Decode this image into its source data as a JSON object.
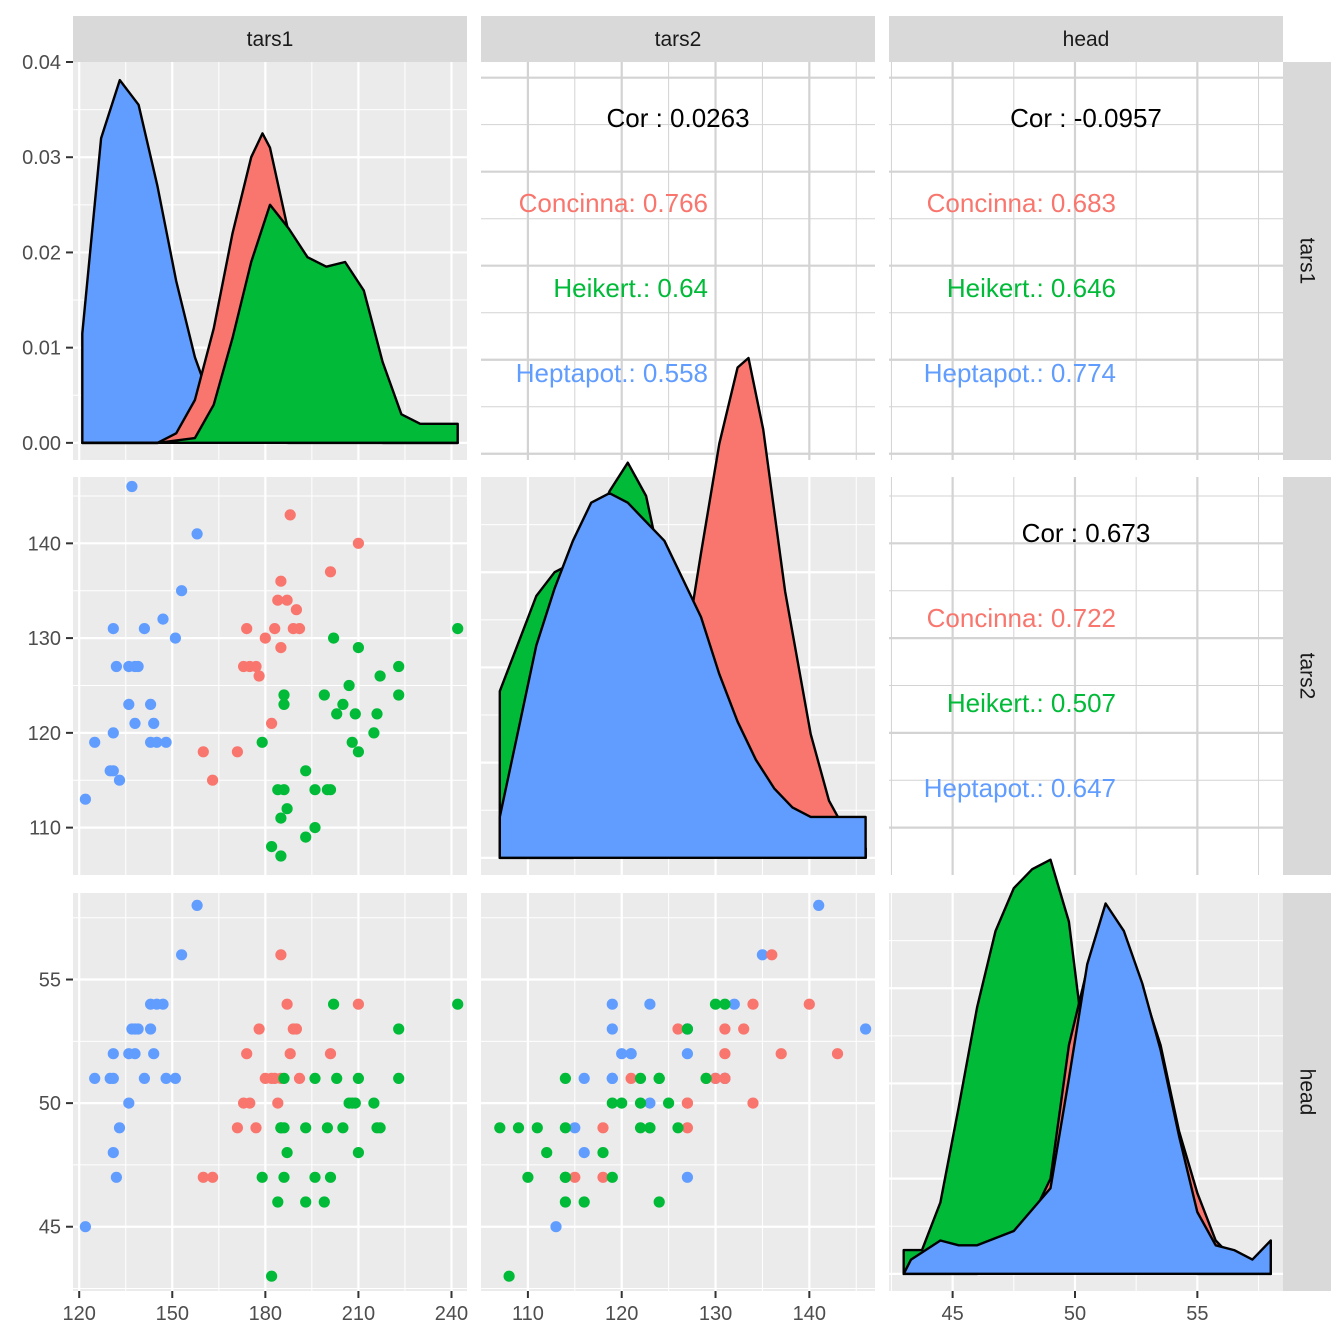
{
  "colors": {
    "panel_bg": "#ebebeb",
    "grid": "#ffffff",
    "strip_bg": "#d9d9d9",
    "Concinna": "#F8766D",
    "Heikert.": "#00BA38",
    "Heptapot.": "#619CFF",
    "text": "#1a1a1a",
    "axis_text": "#4d4d4d"
  },
  "chart_data": {
    "type": "pairs",
    "variables": [
      "tars1",
      "tars2",
      "head"
    ],
    "groups": [
      "Concinna",
      "Heikert.",
      "Heptapot."
    ],
    "column_strips": [
      "tars1",
      "tars2",
      "head"
    ],
    "row_strips": [
      "tars1",
      "tars2",
      "head"
    ],
    "axes": {
      "tars1": {
        "ticks": [
          120,
          150,
          180,
          210,
          240
        ],
        "x_range": [
          118,
          245
        ]
      },
      "tars2": {
        "ticks": [
          110,
          120,
          130,
          140
        ],
        "x_range": [
          105,
          147
        ]
      },
      "head": {
        "ticks": [
          45,
          50,
          55
        ],
        "x_range": [
          42.4,
          58.5
        ]
      }
    },
    "density_y_axis": {
      "ticks": [
        "0.00",
        "0.01",
        "0.02",
        "0.03",
        "0.04"
      ],
      "tick_values": [
        0,
        0.01,
        0.02,
        0.03,
        0.04
      ],
      "range": [
        -0.0018,
        0.04
      ]
    },
    "density_x_ranges": {
      "tars1": [
        121,
        242
      ],
      "tars2": [
        107,
        146
      ],
      "head": [
        43,
        58
      ]
    },
    "densities": {
      "tars1": {
        "Heptapot.": [
          [
            0,
            0.0115
          ],
          [
            0.05,
            0.032
          ],
          [
            0.1,
            0.0381
          ],
          [
            0.15,
            0.0355
          ],
          [
            0.2,
            0.027
          ],
          [
            0.25,
            0.017
          ],
          [
            0.3,
            0.009
          ],
          [
            0.35,
            0.0035
          ],
          [
            0.4,
            0.001
          ],
          [
            0.45,
            0.0003
          ],
          [
            0.5,
            0.0001
          ],
          [
            0.55,
            0
          ],
          [
            0.6,
            0
          ],
          [
            0.7,
            0
          ],
          [
            0.8,
            0
          ],
          [
            0.9,
            0
          ],
          [
            1,
            0
          ]
        ],
        "Concinna": [
          [
            0,
            0
          ],
          [
            0.1,
            0
          ],
          [
            0.2,
            0
          ],
          [
            0.25,
            0.001
          ],
          [
            0.3,
            0.0045
          ],
          [
            0.35,
            0.012
          ],
          [
            0.4,
            0.022
          ],
          [
            0.45,
            0.03
          ],
          [
            0.48,
            0.0325
          ],
          [
            0.5,
            0.031
          ],
          [
            0.55,
            0.022
          ],
          [
            0.6,
            0.012
          ],
          [
            0.65,
            0.005
          ],
          [
            0.7,
            0.0015
          ],
          [
            0.8,
            0
          ],
          [
            0.9,
            0
          ],
          [
            1,
            0
          ]
        ],
        "Heikert.": [
          [
            0,
            0
          ],
          [
            0.2,
            0
          ],
          [
            0.3,
            0.0005
          ],
          [
            0.35,
            0.004
          ],
          [
            0.4,
            0.011
          ],
          [
            0.45,
            0.019
          ],
          [
            0.5,
            0.025
          ],
          [
            0.55,
            0.0225
          ],
          [
            0.6,
            0.0195
          ],
          [
            0.65,
            0.0185
          ],
          [
            0.7,
            0.019
          ],
          [
            0.75,
            0.016
          ],
          [
            0.8,
            0.0085
          ],
          [
            0.85,
            0.003
          ],
          [
            0.9,
            0.002
          ],
          [
            1,
            0.002
          ]
        ]
      },
      "tars2": {
        "Heikert.": [
          [
            0,
            0.0175
          ],
          [
            0.05,
            0.0225
          ],
          [
            0.1,
            0.0275
          ],
          [
            0.15,
            0.03
          ],
          [
            0.2,
            0.031
          ],
          [
            0.25,
            0.034
          ],
          [
            0.3,
            0.0385
          ],
          [
            0.35,
            0.0415
          ],
          [
            0.4,
            0.038
          ],
          [
            0.45,
            0.029
          ],
          [
            0.5,
            0.021
          ],
          [
            0.55,
            0.015
          ],
          [
            0.6,
            0.011
          ],
          [
            0.7,
            0.006
          ],
          [
            0.8,
            0.003
          ],
          [
            0.9,
            0.0015
          ],
          [
            1,
            0.001
          ]
        ],
        "Concinna": [
          [
            0,
            0
          ],
          [
            0.2,
            0
          ],
          [
            0.3,
            0.0005
          ],
          [
            0.4,
            0.005
          ],
          [
            0.45,
            0.011
          ],
          [
            0.5,
            0.02
          ],
          [
            0.55,
            0.032
          ],
          [
            0.6,
            0.0435
          ],
          [
            0.65,
            0.0515
          ],
          [
            0.68,
            0.0525
          ],
          [
            0.72,
            0.045
          ],
          [
            0.78,
            0.028
          ],
          [
            0.85,
            0.013
          ],
          [
            0.9,
            0.006
          ],
          [
            0.95,
            0.0025
          ],
          [
            1,
            0.001
          ]
        ],
        "Heptapot.": [
          [
            0,
            0.0043
          ],
          [
            0.05,
            0.0133
          ],
          [
            0.1,
            0.0223
          ],
          [
            0.15,
            0.0283
          ],
          [
            0.2,
            0.0333
          ],
          [
            0.25,
            0.0373
          ],
          [
            0.3,
            0.0383
          ],
          [
            0.35,
            0.0373
          ],
          [
            0.4,
            0.0353
          ],
          [
            0.45,
            0.0333
          ],
          [
            0.5,
            0.0293
          ],
          [
            0.55,
            0.0253
          ],
          [
            0.6,
            0.0193
          ],
          [
            0.65,
            0.0143
          ],
          [
            0.7,
            0.0103
          ],
          [
            0.75,
            0.0073
          ],
          [
            0.8,
            0.0053
          ],
          [
            0.85,
            0.0043
          ],
          [
            0.9,
            0.0043
          ],
          [
            0.95,
            0.0043
          ],
          [
            1,
            0.0043
          ]
        ]
      },
      "head": {
        "Heikert.": [
          [
            0,
            0.0025
          ],
          [
            0.05,
            0.0025
          ],
          [
            0.1,
            0.0075
          ],
          [
            0.15,
            0.0175
          ],
          [
            0.2,
            0.028
          ],
          [
            0.25,
            0.036
          ],
          [
            0.3,
            0.0405
          ],
          [
            0.35,
            0.0425
          ],
          [
            0.4,
            0.0435
          ],
          [
            0.45,
            0.037
          ],
          [
            0.5,
            0.0215
          ],
          [
            0.55,
            0.01
          ],
          [
            0.6,
            0.004
          ],
          [
            0.7,
            0.0005
          ],
          [
            0.8,
            0
          ],
          [
            1,
            0
          ]
        ],
        "Concinna": [
          [
            0,
            0
          ],
          [
            0.2,
            0
          ],
          [
            0.3,
            0.002
          ],
          [
            0.4,
            0.01
          ],
          [
            0.45,
            0.024
          ],
          [
            0.5,
            0.032
          ],
          [
            0.55,
            0.0365
          ],
          [
            0.6,
            0.0345
          ],
          [
            0.65,
            0.03
          ],
          [
            0.7,
            0.024
          ],
          [
            0.75,
            0.015
          ],
          [
            0.8,
            0.0085
          ],
          [
            0.85,
            0.0035
          ],
          [
            0.9,
            0.0015
          ],
          [
            1,
            0
          ]
        ],
        "Heptapot.": [
          [
            0,
            0
          ],
          [
            0.02,
            0.0015
          ],
          [
            0.1,
            0.0035
          ],
          [
            0.15,
            0.003
          ],
          [
            0.2,
            0.003
          ],
          [
            0.3,
            0.0045
          ],
          [
            0.4,
            0.009
          ],
          [
            0.45,
            0.0205
          ],
          [
            0.5,
            0.0325
          ],
          [
            0.55,
            0.0389
          ],
          [
            0.6,
            0.036
          ],
          [
            0.65,
            0.0305
          ],
          [
            0.7,
            0.0235
          ],
          [
            0.75,
            0.0145
          ],
          [
            0.8,
            0.0065
          ],
          [
            0.85,
            0.003
          ],
          [
            0.9,
            0.0025
          ],
          [
            0.95,
            0.0015
          ],
          [
            1,
            0.0035
          ]
        ]
      }
    },
    "correlations": [
      {
        "pair": [
          "tars2",
          "tars1"
        ],
        "overall": "Cor : 0.0263",
        "groups": [
          "Concinna: 0.766",
          "Heikert.: 0.64",
          "Heptapot.: 0.558"
        ]
      },
      {
        "pair": [
          "head",
          "tars1"
        ],
        "overall": "Cor : -0.0957",
        "groups": [
          "Concinna: 0.683",
          "Heikert.: 0.646",
          "Heptapot.: 0.774"
        ]
      },
      {
        "pair": [
          "head",
          "tars2"
        ],
        "overall": "Cor : 0.673",
        "groups": [
          "Concinna: 0.722",
          "Heikert.: 0.507",
          "Heptapot.: 0.647"
        ]
      }
    ],
    "points": [
      {
        "g": "Heptapot.",
        "tars1": 122,
        "tars2": 113,
        "head": 45
      },
      {
        "g": "Heptapot.",
        "tars1": 125,
        "tars2": 119,
        "head": 51
      },
      {
        "g": "Heptapot.",
        "tars1": 130,
        "tars2": 116,
        "head": 51
      },
      {
        "g": "Heptapot.",
        "tars1": 131,
        "tars2": 116,
        "head": 48
      },
      {
        "g": "Heptapot.",
        "tars1": 131,
        "tars2": 120,
        "head": 52
      },
      {
        "g": "Heptapot.",
        "tars1": 131,
        "tars2": 131,
        "head": 51
      },
      {
        "g": "Heptapot.",
        "tars1": 132,
        "tars2": 127,
        "head": 47
      },
      {
        "g": "Heptapot.",
        "tars1": 133,
        "tars2": 115,
        "head": 49
      },
      {
        "g": "Heptapot.",
        "tars1": 136,
        "tars2": 123,
        "head": 50
      },
      {
        "g": "Heptapot.",
        "tars1": 136,
        "tars2": 127,
        "head": 52
      },
      {
        "g": "Heptapot.",
        "tars1": 137,
        "tars2": 146,
        "head": 53
      },
      {
        "g": "Heptapot.",
        "tars1": 138,
        "tars2": 127,
        "head": 53
      },
      {
        "g": "Heptapot.",
        "tars1": 138,
        "tars2": 121,
        "head": 52
      },
      {
        "g": "Heptapot.",
        "tars1": 139,
        "tars2": 127,
        "head": 53
      },
      {
        "g": "Heptapot.",
        "tars1": 141,
        "tars2": 131,
        "head": 51
      },
      {
        "g": "Heptapot.",
        "tars1": 143,
        "tars2": 123,
        "head": 54
      },
      {
        "g": "Heptapot.",
        "tars1": 143,
        "tars2": 119,
        "head": 53
      },
      {
        "g": "Heptapot.",
        "tars1": 144,
        "tars2": 121,
        "head": 52
      },
      {
        "g": "Heptapot.",
        "tars1": 145,
        "tars2": 119,
        "head": 54
      },
      {
        "g": "Heptapot.",
        "tars1": 147,
        "tars2": 132,
        "head": 54
      },
      {
        "g": "Heptapot.",
        "tars1": 148,
        "tars2": 119,
        "head": 51
      },
      {
        "g": "Heptapot.",
        "tars1": 151,
        "tars2": 130,
        "head": 51
      },
      {
        "g": "Heptapot.",
        "tars1": 153,
        "tars2": 135,
        "head": 56
      },
      {
        "g": "Heptapot.",
        "tars1": 158,
        "tars2": 141,
        "head": 58
      },
      {
        "g": "Concinna",
        "tars1": 160,
        "tars2": 118,
        "head": 47
      },
      {
        "g": "Concinna",
        "tars1": 163,
        "tars2": 115,
        "head": 47
      },
      {
        "g": "Concinna",
        "tars1": 171,
        "tars2": 118,
        "head": 49
      },
      {
        "g": "Concinna",
        "tars1": 173,
        "tars2": 127,
        "head": 50
      },
      {
        "g": "Concinna",
        "tars1": 174,
        "tars2": 131,
        "head": 52
      },
      {
        "g": "Concinna",
        "tars1": 175,
        "tars2": 127,
        "head": 50
      },
      {
        "g": "Concinna",
        "tars1": 177,
        "tars2": 127,
        "head": 49
      },
      {
        "g": "Concinna",
        "tars1": 178,
        "tars2": 126,
        "head": 53
      },
      {
        "g": "Concinna",
        "tars1": 180,
        "tars2": 130,
        "head": 51
      },
      {
        "g": "Concinna",
        "tars1": 182,
        "tars2": 121,
        "head": 51
      },
      {
        "g": "Concinna",
        "tars1": 183,
        "tars2": 131,
        "head": 51
      },
      {
        "g": "Concinna",
        "tars1": 184,
        "tars2": 134,
        "head": 50
      },
      {
        "g": "Concinna",
        "tars1": 185,
        "tars2": 129,
        "head": 51
      },
      {
        "g": "Concinna",
        "tars1": 185,
        "tars2": 136,
        "head": 56
      },
      {
        "g": "Concinna",
        "tars1": 187,
        "tars2": 134,
        "head": 54
      },
      {
        "g": "Concinna",
        "tars1": 188,
        "tars2": 143,
        "head": 52
      },
      {
        "g": "Concinna",
        "tars1": 189,
        "tars2": 131,
        "head": 53
      },
      {
        "g": "Concinna",
        "tars1": 190,
        "tars2": 133,
        "head": 53
      },
      {
        "g": "Concinna",
        "tars1": 191,
        "tars2": 131,
        "head": 51
      },
      {
        "g": "Concinna",
        "tars1": 201,
        "tars2": 137,
        "head": 52
      },
      {
        "g": "Concinna",
        "tars1": 210,
        "tars2": 140,
        "head": 54
      },
      {
        "g": "Heikert.",
        "tars1": 179,
        "tars2": 119,
        "head": 47
      },
      {
        "g": "Heikert.",
        "tars1": 182,
        "tars2": 108,
        "head": 43
      },
      {
        "g": "Heikert.",
        "tars1": 184,
        "tars2": 114,
        "head": 46
      },
      {
        "g": "Heikert.",
        "tars1": 185,
        "tars2": 107,
        "head": 49
      },
      {
        "g": "Heikert.",
        "tars1": 185,
        "tars2": 111,
        "head": 49
      },
      {
        "g": "Heikert.",
        "tars1": 186,
        "tars2": 114,
        "head": 47
      },
      {
        "g": "Heikert.",
        "tars1": 186,
        "tars2": 123,
        "head": 49
      },
      {
        "g": "Heikert.",
        "tars1": 186,
        "tars2": 124,
        "head": 51
      },
      {
        "g": "Heikert.",
        "tars1": 187,
        "tars2": 112,
        "head": 48
      },
      {
        "g": "Heikert.",
        "tars1": 193,
        "tars2": 116,
        "head": 46
      },
      {
        "g": "Heikert.",
        "tars1": 193,
        "tars2": 109,
        "head": 49
      },
      {
        "g": "Heikert.",
        "tars1": 196,
        "tars2": 110,
        "head": 47
      },
      {
        "g": "Heikert.",
        "tars1": 196,
        "tars2": 114,
        "head": 51
      },
      {
        "g": "Heikert.",
        "tars1": 199,
        "tars2": 124,
        "head": 46
      },
      {
        "g": "Heikert.",
        "tars1": 200,
        "tars2": 114,
        "head": 49
      },
      {
        "g": "Heikert.",
        "tars1": 201,
        "tars2": 114,
        "head": 47
      },
      {
        "g": "Heikert.",
        "tars1": 202,
        "tars2": 130,
        "head": 54
      },
      {
        "g": "Heikert.",
        "tars1": 203,
        "tars2": 122,
        "head": 51
      },
      {
        "g": "Heikert.",
        "tars1": 205,
        "tars2": 123,
        "head": 49
      },
      {
        "g": "Heikert.",
        "tars1": 207,
        "tars2": 125,
        "head": 50
      },
      {
        "g": "Heikert.",
        "tars1": 208,
        "tars2": 119,
        "head": 50
      },
      {
        "g": "Heikert.",
        "tars1": 209,
        "tars2": 122,
        "head": 50
      },
      {
        "g": "Heikert.",
        "tars1": 210,
        "tars2": 129,
        "head": 51
      },
      {
        "g": "Heikert.",
        "tars1": 210,
        "tars2": 118,
        "head": 48
      },
      {
        "g": "Heikert.",
        "tars1": 215,
        "tars2": 120,
        "head": 50
      },
      {
        "g": "Heikert.",
        "tars1": 216,
        "tars2": 122,
        "head": 49
      },
      {
        "g": "Heikert.",
        "tars1": 217,
        "tars2": 126,
        "head": 49
      },
      {
        "g": "Heikert.",
        "tars1": 223,
        "tars2": 127,
        "head": 53
      },
      {
        "g": "Heikert.",
        "tars1": 223,
        "tars2": 124,
        "head": 51
      },
      {
        "g": "Heikert.",
        "tars1": 242,
        "tars2": 131,
        "head": 54
      }
    ]
  }
}
